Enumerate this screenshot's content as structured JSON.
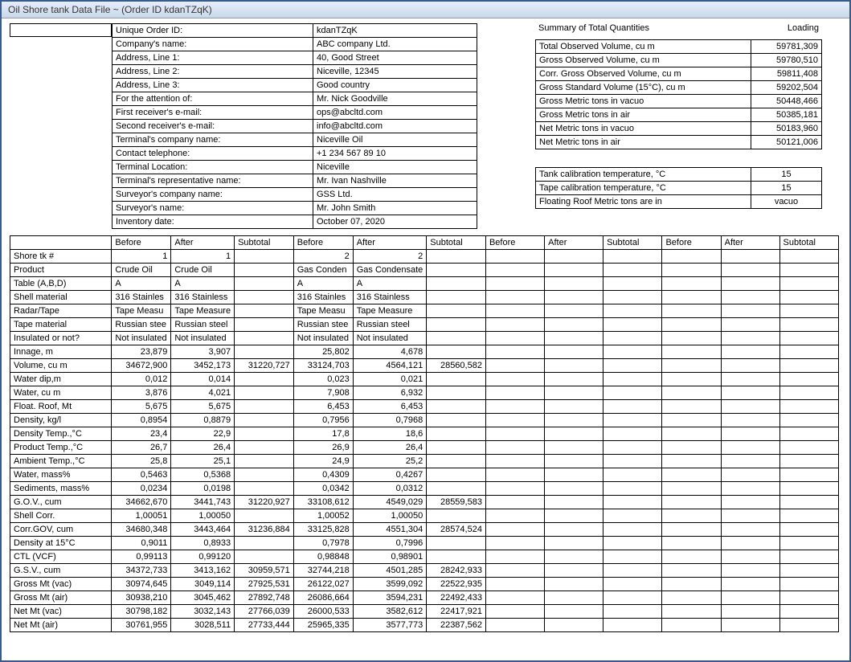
{
  "window": {
    "title": "Oil Shore tank Data File ~  (Order ID kdanTZqK)"
  },
  "info": {
    "rows": [
      {
        "label": "Unique Order ID:",
        "value": "kdanTZqK"
      },
      {
        "label": "Company's name:",
        "value": "ABC company Ltd."
      },
      {
        "label": "Address, Line 1:",
        "value": "40, Good Street"
      },
      {
        "label": "Address, Line 2:",
        "value": "Niceville, 12345"
      },
      {
        "label": "Address, Line 3:",
        "value": "Good country"
      },
      {
        "label": "For the attention of:",
        "value": "Mr. Nick Goodville"
      },
      {
        "label": "First receiver's e-mail:",
        "value": "ops@abcltd.com"
      },
      {
        "label": "Second receiver's e-mail:",
        "value": "info@abcltd.com"
      },
      {
        "label": "Terminal's company name:",
        "value": "Niceville Oil"
      },
      {
        "label": "Contact telephone:",
        "value": "+1 234 567 89 10"
      },
      {
        "label": "Terminal Location:",
        "value": "Niceville"
      },
      {
        "label": "Terminal's representative name:",
        "value": "Mr. Ivan Nashville"
      },
      {
        "label": "Surveyor's company name:",
        "value": "GSS Ltd."
      },
      {
        "label": "Surveyor's name:",
        "value": "Mr. John Smith"
      },
      {
        "label": "Inventory date:",
        "value": "October 07, 2020"
      }
    ]
  },
  "summary": {
    "heading": "Summary of Total Quantities",
    "mode": "Loading",
    "rows": [
      {
        "label": "Total Observed Volume, cu m",
        "value": "59781,309"
      },
      {
        "label": "Gross Observed Volume, cu m",
        "value": "59780,510"
      },
      {
        "label": "Corr. Gross Observed Volume, cu m",
        "value": "59811,408"
      },
      {
        "label": "Gross Standard Volume (15°C), cu m",
        "value": "59202,504"
      },
      {
        "label": "Gross Metric tons in vacuo",
        "value": "50448,466"
      },
      {
        "label": "Gross Metric tons in air",
        "value": "50385,181"
      },
      {
        "label": "Net Metric tons in vacuo",
        "value": "50183,960"
      },
      {
        "label": "Net Metric tons in air",
        "value": "50121,006"
      }
    ],
    "calib": [
      {
        "label": "Tank calibration temperature, °C",
        "value": "15"
      },
      {
        "label": "Tape calibration temperature, °C",
        "value": "15"
      },
      {
        "label": "Floating Roof Metric tons are  in",
        "value": "vacuo"
      }
    ]
  },
  "grid": {
    "col_headers": [
      "Before",
      "After",
      "Subtotal",
      "Before",
      "After",
      "Subtotal",
      "Before",
      "After",
      "Subtotal",
      "Before",
      "After",
      "Subtotal"
    ],
    "shore_label": "Shore tk #",
    "shore": [
      "1",
      "1",
      "",
      "2",
      "2",
      "",
      "",
      "",
      "",
      "",
      "",
      ""
    ],
    "rows": [
      {
        "label": "Product",
        "v": [
          "Crude Oil",
          "Crude Oil",
          "",
          "Gas Conden",
          "Gas Condensate",
          "",
          "",
          "",
          "",
          "",
          "",
          ""
        ],
        "txt": true
      },
      {
        "label": "Table (A,B,D)",
        "v": [
          "A",
          "A",
          "",
          "A",
          "A",
          "",
          "",
          "",
          "",
          "",
          "",
          ""
        ],
        "txt": true
      },
      {
        "label": "Shell material",
        "v": [
          "316 Stainles",
          "316 Stainless",
          "",
          "316 Stainles",
          "316 Stainless",
          "",
          "",
          "",
          "",
          "",
          "",
          ""
        ],
        "txt": true
      },
      {
        "label": "Radar/Tape",
        "v": [
          "Tape Measu",
          "Tape Measure",
          "",
          "Tape Measu",
          "Tape Measure",
          "",
          "",
          "",
          "",
          "",
          "",
          ""
        ],
        "txt": true
      },
      {
        "label": "Tape material",
        "v": [
          "Russian stee",
          "Russian steel",
          "",
          "Russian stee",
          "Russian steel",
          "",
          "",
          "",
          "",
          "",
          "",
          ""
        ],
        "txt": true
      },
      {
        "label": "Insulated or not?",
        "v": [
          "Not insulated",
          "Not insulated",
          "",
          "Not insulated",
          "Not insulated",
          "",
          "",
          "",
          "",
          "",
          "",
          ""
        ],
        "txt": true
      },
      {
        "label": "Innage, m",
        "v": [
          "23,879",
          "3,907",
          "",
          "25,802",
          "4,678",
          "",
          "",
          "",
          "",
          "",
          "",
          ""
        ]
      },
      {
        "label": "Volume, cu m",
        "v": [
          "34672,900",
          "3452,173",
          "31220,727",
          "33124,703",
          "4564,121",
          "28560,582",
          "",
          "",
          "",
          "",
          "",
          ""
        ]
      },
      {
        "label": "Water dip,m",
        "v": [
          "0,012",
          "0,014",
          "",
          "0,023",
          "0,021",
          "",
          "",
          "",
          "",
          "",
          "",
          ""
        ]
      },
      {
        "label": "Water, cu m",
        "v": [
          "3,876",
          "4,021",
          "",
          "7,908",
          "6,932",
          "",
          "",
          "",
          "",
          "",
          "",
          ""
        ]
      },
      {
        "label": "Float. Roof, Mt",
        "v": [
          "5,675",
          "5,675",
          "",
          "6,453",
          "6,453",
          "",
          "",
          "",
          "",
          "",
          "",
          ""
        ]
      },
      {
        "label": "Density, kg/l",
        "v": [
          "0,8954",
          "0,8879",
          "",
          "0,7956",
          "0,7968",
          "",
          "",
          "",
          "",
          "",
          "",
          ""
        ]
      },
      {
        "label": "Density Temp.,°C",
        "v": [
          "23,4",
          "22,9",
          "",
          "17,8",
          "18,6",
          "",
          "",
          "",
          "",
          "",
          "",
          ""
        ]
      },
      {
        "label": "Product Temp.,°C",
        "v": [
          "26,7",
          "26,4",
          "",
          "26,9",
          "26,4",
          "",
          "",
          "",
          "",
          "",
          "",
          ""
        ]
      },
      {
        "label": "Ambient Temp.,°C",
        "v": [
          "25,8",
          "25,1",
          "",
          "24,9",
          "25,2",
          "",
          "",
          "",
          "",
          "",
          "",
          ""
        ]
      },
      {
        "label": "Water, mass%",
        "v": [
          "0,5463",
          "0,5368",
          "",
          "0,4309",
          "0,4267",
          "",
          "",
          "",
          "",
          "",
          "",
          ""
        ]
      },
      {
        "label": "Sediments, mass%",
        "v": [
          "0,0234",
          "0,0198",
          "",
          "0,0342",
          "0,0312",
          "",
          "",
          "",
          "",
          "",
          "",
          ""
        ]
      },
      {
        "label": "G.O.V., cum",
        "v": [
          "34662,670",
          "3441,743",
          "31220,927",
          "33108,612",
          "4549,029",
          "28559,583",
          "",
          "",
          "",
          "",
          "",
          ""
        ]
      },
      {
        "label": "Shell Corr.",
        "v": [
          "1,00051",
          "1,00050",
          "",
          "1,00052",
          "1,00050",
          "",
          "",
          "",
          "",
          "",
          "",
          ""
        ]
      },
      {
        "label": "Corr.GOV, cum",
        "v": [
          "34680,348",
          "3443,464",
          "31236,884",
          "33125,828",
          "4551,304",
          "28574,524",
          "",
          "",
          "",
          "",
          "",
          ""
        ]
      },
      {
        "label": "Density at 15°C",
        "v": [
          "0,9011",
          "0,8933",
          "",
          "0,7978",
          "0,7996",
          "",
          "",
          "",
          "",
          "",
          "",
          ""
        ]
      },
      {
        "label": "CTL (VCF)",
        "v": [
          "0,99113",
          "0,99120",
          "",
          "0,98848",
          "0,98901",
          "",
          "",
          "",
          "",
          "",
          "",
          ""
        ]
      },
      {
        "label": "G.S.V., cum",
        "v": [
          "34372,733",
          "3413,162",
          "30959,571",
          "32744,218",
          "4501,285",
          "28242,933",
          "",
          "",
          "",
          "",
          "",
          ""
        ]
      },
      {
        "label": "Gross Mt (vac)",
        "v": [
          "30974,645",
          "3049,114",
          "27925,531",
          "26122,027",
          "3599,092",
          "22522,935",
          "",
          "",
          "",
          "",
          "",
          ""
        ]
      },
      {
        "label": "Gross Mt (air)",
        "v": [
          "30938,210",
          "3045,462",
          "27892,748",
          "26086,664",
          "3594,231",
          "22492,433",
          "",
          "",
          "",
          "",
          "",
          ""
        ]
      },
      {
        "label": "Net Mt (vac)",
        "v": [
          "30798,182",
          "3032,143",
          "27766,039",
          "26000,533",
          "3582,612",
          "22417,921",
          "",
          "",
          "",
          "",
          "",
          ""
        ]
      },
      {
        "label": "Net Mt (air)",
        "v": [
          "30761,955",
          "3028,511",
          "27733,444",
          "25965,335",
          "3577,773",
          "22387,562",
          "",
          "",
          "",
          "",
          "",
          ""
        ]
      }
    ]
  }
}
